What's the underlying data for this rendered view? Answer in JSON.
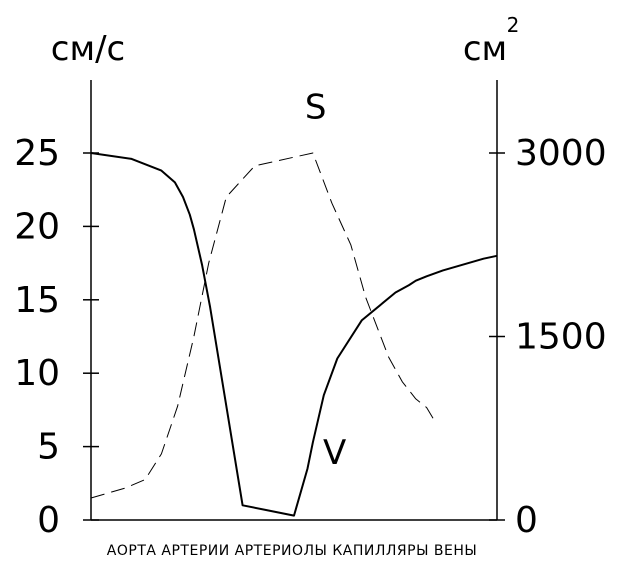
{
  "chart_data": {
    "type": "line",
    "title": "",
    "categories": [
      "АОРТА",
      "АРТЕРИИ",
      "АРТЕРИОЛЫ",
      "КАПИЛЛЯРЫ",
      "ВЕНЫ"
    ],
    "category_axis_text": "АОРТА АРТЕРИИ АРТЕРИОЛЫ КАПИЛЛЯРЫ ВЕНЫ",
    "y_left": {
      "unit": "см/с",
      "ticks": [
        "0",
        "5",
        "10",
        "15",
        "20",
        "25"
      ],
      "range": [
        0,
        25
      ]
    },
    "y_right": {
      "unit": "см",
      "unit_superscript": "2",
      "ticks": [
        "0",
        "1500",
        "3000"
      ],
      "range": [
        0,
        3000
      ]
    },
    "series": [
      {
        "name": "V",
        "axis": "left",
        "style": "solid",
        "x": [
          0,
          0.3,
          0.52,
          0.62,
          0.68,
          0.73,
          0.76,
          0.82,
          0.88,
          1.12,
          1.5,
          1.6,
          1.64,
          1.72,
          1.82,
          2.0,
          2.25,
          2.35,
          2.4,
          2.48,
          2.6,
          2.75,
          2.9,
          3.0
        ],
        "values": [
          25.0,
          24.6,
          23.8,
          23.0,
          22.0,
          20.8,
          19.8,
          17.4,
          14.5,
          1.0,
          0.3,
          3.5,
          5.3,
          8.5,
          11.0,
          13.6,
          15.5,
          16.0,
          16.3,
          16.6,
          17.0,
          17.4,
          17.8,
          18.0
        ],
        "label": "V"
      },
      {
        "name": "S",
        "axis": "right",
        "style": "dashed",
        "x": [
          0,
          0.25,
          0.4,
          0.52,
          0.64,
          0.76,
          0.87,
          1.0,
          1.21,
          1.64,
          1.78,
          1.92,
          2.03,
          2.12,
          2.2,
          2.3,
          2.4,
          2.48,
          2.55
        ],
        "values": [
          180,
          260,
          330,
          540,
          930,
          1500,
          2100,
          2640,
          2895,
          3000,
          2590,
          2250,
          1820,
          1560,
          1330,
          1130,
          990,
          920,
          790
        ],
        "label": "S"
      }
    ],
    "grid": false,
    "legend": "none"
  }
}
